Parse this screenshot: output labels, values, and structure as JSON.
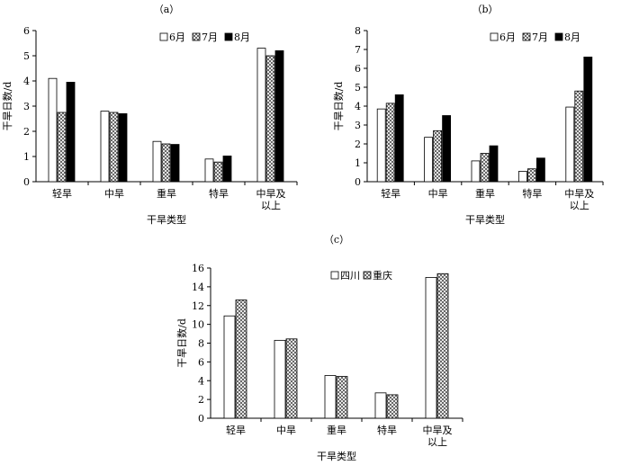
{
  "chart_data": [
    {
      "panel": "（a）",
      "type": "bar",
      "categories": [
        "轻旱",
        "中旱",
        "重旱",
        "特旱",
        "中旱及\n以上"
      ],
      "series": [
        {
          "name": "6月",
          "values": [
            4.1,
            2.8,
            1.6,
            0.9,
            5.3
          ]
        },
        {
          "name": "7月",
          "values": [
            2.75,
            2.75,
            1.5,
            0.78,
            5.0
          ]
        },
        {
          "name": "8月",
          "values": [
            3.95,
            2.7,
            1.48,
            1.02,
            5.2
          ]
        }
      ],
      "xlabel": "干旱类型",
      "ylabel": "干旱日数/d",
      "ylim": [
        0,
        6
      ],
      "yticks": [
        0,
        1,
        2,
        3,
        4,
        5,
        6
      ],
      "legend": "top-right",
      "grid": false
    },
    {
      "panel": "（b）",
      "type": "bar",
      "categories": [
        "轻旱",
        "中旱",
        "重旱",
        "特旱",
        "中旱及\n以上"
      ],
      "series": [
        {
          "name": "6月",
          "values": [
            3.85,
            2.35,
            1.1,
            0.55,
            3.95
          ]
        },
        {
          "name": "7月",
          "values": [
            4.15,
            2.7,
            1.5,
            0.68,
            4.8
          ]
        },
        {
          "name": "8月",
          "values": [
            4.6,
            3.5,
            1.9,
            1.25,
            6.6
          ]
        }
      ],
      "xlabel": "干旱类型",
      "ylabel": "干旱日数/d",
      "ylim": [
        0,
        8
      ],
      "yticks": [
        0,
        1,
        2,
        3,
        4,
        5,
        6,
        7,
        8
      ],
      "legend": "top-right",
      "grid": false
    },
    {
      "panel": "（c）",
      "type": "bar",
      "categories": [
        "轻旱",
        "中旱",
        "重旱",
        "特旱",
        "中旱及\n以上"
      ],
      "series": [
        {
          "name": "四川",
          "values": [
            10.9,
            8.3,
            4.55,
            2.7,
            15.0
          ]
        },
        {
          "name": "重庆",
          "values": [
            12.6,
            8.45,
            4.45,
            2.5,
            15.4
          ]
        }
      ],
      "xlabel": "干旱类型",
      "ylabel": "干旱日数/d",
      "ylim": [
        0,
        16
      ],
      "yticks": [
        0,
        2,
        4,
        6,
        8,
        10,
        12,
        14,
        16
      ],
      "legend": "top-right",
      "grid": false
    }
  ],
  "colors": {
    "axis": "#000000",
    "bar_fill": "#000000",
    "bar_hollow": "#ffffff"
  }
}
